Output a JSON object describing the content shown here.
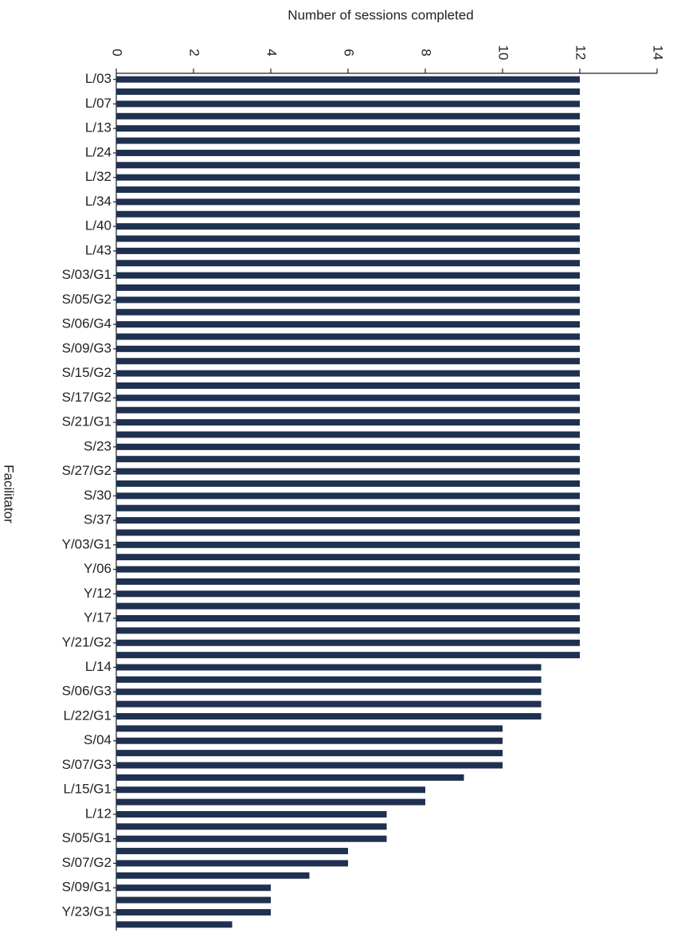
{
  "chart_data": {
    "type": "bar",
    "orientation": "horizontal",
    "title": "Number of sessions completed",
    "y_label": "Facilitator",
    "categories": [
      "L/03",
      null,
      "L/07",
      null,
      "L/13",
      null,
      "L/24",
      null,
      "L/32",
      null,
      "L/34",
      null,
      "L/40",
      null,
      "L/43",
      null,
      "S/03/G1",
      null,
      "S/05/G2",
      null,
      "S/06/G4",
      null,
      "S/09/G3",
      null,
      "S/15/G2",
      null,
      "S/17/G2",
      null,
      "S/21/G1",
      null,
      "S/23",
      null,
      "S/27/G2",
      null,
      "S/30",
      null,
      "S/37",
      null,
      "Y/03/G1",
      null,
      "Y/06",
      null,
      "Y/12",
      null,
      "Y/17",
      null,
      "Y/21/G2",
      null,
      "L/14",
      null,
      "S/06/G3",
      null,
      "L/22/G1",
      null,
      "S/04",
      null,
      "S/07/G3",
      null,
      "L/15/G1",
      null,
      "L/12",
      null,
      "S/05/G1",
      null,
      "S/07/G2",
      null,
      "S/09/G1",
      null,
      "Y/23/G1",
      null
    ],
    "values": [
      12,
      12,
      12,
      12,
      12,
      12,
      12,
      12,
      12,
      12,
      12,
      12,
      12,
      12,
      12,
      12,
      12,
      12,
      12,
      12,
      12,
      12,
      12,
      12,
      12,
      12,
      12,
      12,
      12,
      12,
      12,
      12,
      12,
      12,
      12,
      12,
      12,
      12,
      12,
      12,
      12,
      12,
      12,
      12,
      12,
      12,
      12,
      12,
      11,
      11,
      11,
      11,
      11,
      10,
      10,
      10,
      10,
      9,
      8,
      8,
      7,
      7,
      7,
      6,
      6,
      5,
      4,
      4,
      4,
      3
    ],
    "color": "#1f3050",
    "xlim": [
      0,
      14
    ],
    "xticks": [
      0,
      2,
      4,
      6,
      8,
      10,
      12,
      14
    ],
    "grid": false
  }
}
